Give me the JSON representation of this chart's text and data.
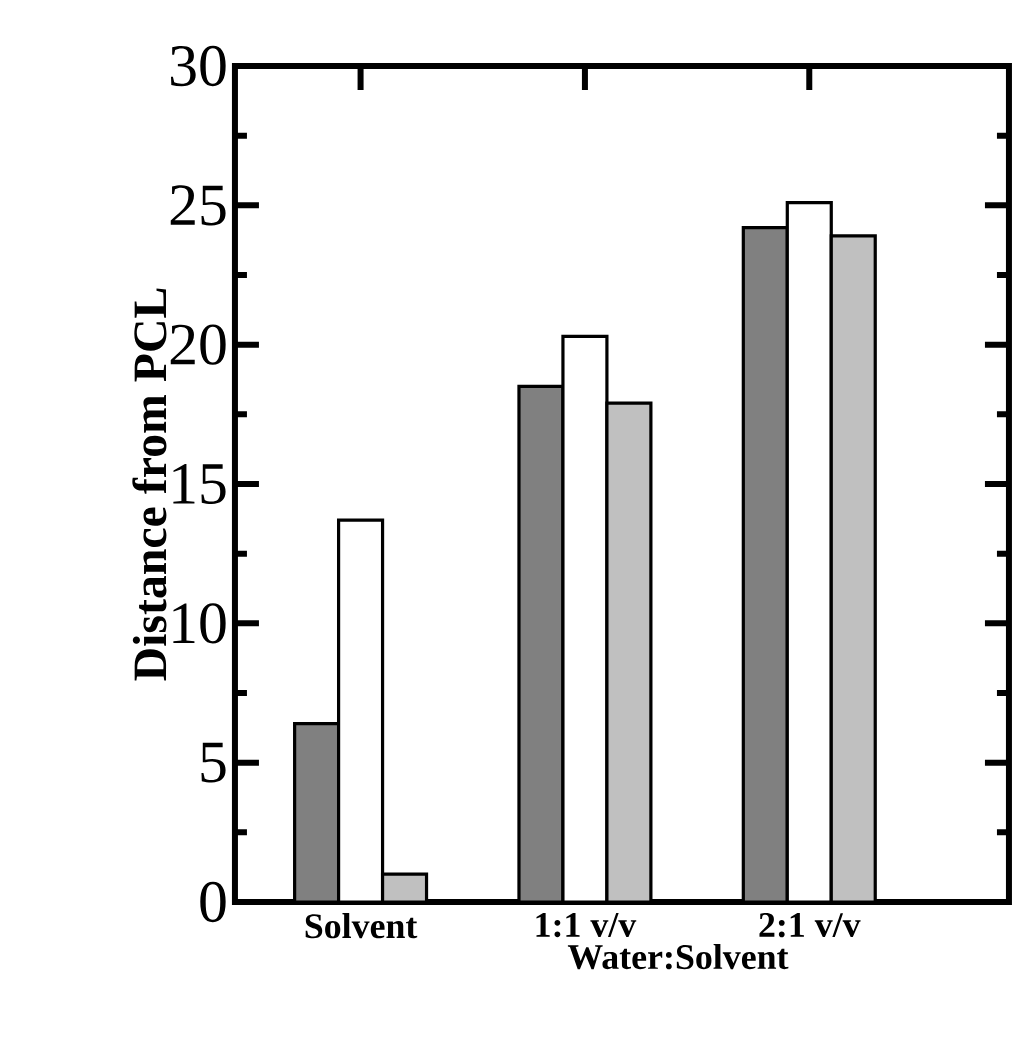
{
  "chart_data": {
    "type": "bar",
    "xlabel": "Water:Solvent",
    "ylabel": "Distance from PCL",
    "categories": [
      "Solvent",
      "1:1 v/v",
      "2:1 v/v"
    ],
    "series": [
      {
        "color": "#808080",
        "values": [
          6.4,
          18.5,
          24.2
        ]
      },
      {
        "color": "#ffffff",
        "values": [
          13.7,
          20.3,
          25.1
        ]
      },
      {
        "color": "#c0c0c0",
        "values": [
          1.0,
          17.9,
          23.9
        ]
      }
    ],
    "ylim": [
      0,
      30
    ],
    "yticks": [
      0,
      5,
      10,
      15,
      20,
      25,
      30
    ]
  }
}
